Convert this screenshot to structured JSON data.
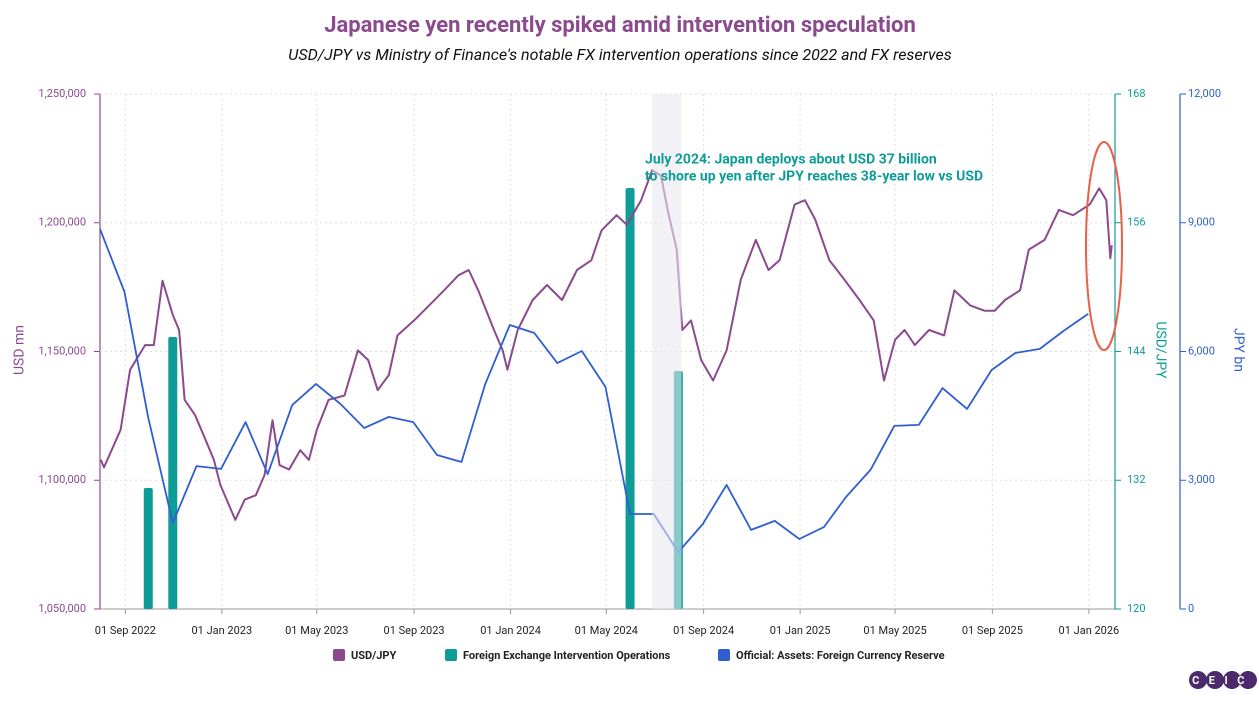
{
  "chart_data": {
    "type": "combo",
    "title": "Japanese yen recently spiked amid intervention speculation",
    "subtitle": "USD/JPY vs Ministry of Finance's notable FX intervention operations since 2022 and FX reserves",
    "y_label": "USD mn",
    "y2_label": "USD/JPY",
    "y3_label": "JPY bn",
    "xlim": [
      "2022-07-31",
      "2026-02-03"
    ],
    "xticks": [
      {
        "value": "2022-09-01",
        "label": "01 Sep 2022"
      },
      {
        "value": "2023-01-01",
        "label": "01 Jan 2023"
      },
      {
        "value": "2023-05-01",
        "label": "01 May 2023"
      },
      {
        "value": "2023-09-01",
        "label": "01 Sep 2023"
      },
      {
        "value": "2024-01-01",
        "label": "01 Jan 2024"
      },
      {
        "value": "2024-05-01",
        "label": "01 May 2024"
      },
      {
        "value": "2024-09-01",
        "label": "01 Sep 2024"
      },
      {
        "value": "2025-01-01",
        "label": "01 Jan 2025"
      },
      {
        "value": "2025-05-01",
        "label": "01 May 2025"
      },
      {
        "value": "2025-09-01",
        "label": "01 Sep 2025"
      },
      {
        "value": "2026-01-01",
        "label": "01 Jan 2026"
      }
    ],
    "ylim": [
      1050000,
      1250000
    ],
    "yticks": [
      {
        "value": 1050000,
        "label": "1,050,000"
      },
      {
        "value": 1100000,
        "label": "1,100,000"
      },
      {
        "value": 1150000,
        "label": "1,150,000"
      },
      {
        "value": 1200000,
        "label": "1,200,000"
      },
      {
        "value": 1250000,
        "label": "1,250,000"
      }
    ],
    "y2lim": [
      120,
      168
    ],
    "y2ticks": [
      120,
      132,
      144,
      156,
      168
    ],
    "y3lim": [
      0,
      12000
    ],
    "y3ticks": [
      0,
      {
        "value": 3000,
        "label": "3,000"
      },
      {
        "value": 6000,
        "label": "6,000"
      },
      {
        "value": 9000,
        "label": "9,000"
      },
      {
        "value": 12000,
        "label": "12,000"
      }
    ],
    "grid": true,
    "highlight": [
      "2024-06-28",
      "2024-08-04"
    ],
    "annotation": [
      "July 2024: Japan deploys about USD 37 billion",
      "to shore up yen after JPY reaches 38-year low vs USD"
    ],
    "logo": "CEIC",
    "series": [
      {
        "name": "USD/JPY",
        "type": "line",
        "axis": "y2",
        "color": "#8b4a8e",
        "x": [
          "2022-08-01",
          "2022-08-05",
          "2022-08-26",
          "2022-09-07",
          "2022-09-26",
          "2022-10-07",
          "2022-10-18",
          "2022-10-31",
          "2022-11-08",
          "2022-11-15",
          "2022-11-28",
          "2022-12-09",
          "2022-12-22",
          "2022-12-30",
          "2023-01-18",
          "2023-01-30",
          "2023-02-13",
          "2023-02-24",
          "2023-03-06",
          "2023-03-15",
          "2023-03-27",
          "2023-04-10",
          "2023-04-21",
          "2023-05-01",
          "2023-05-16",
          "2023-06-05",
          "2023-06-22",
          "2023-07-05",
          "2023-07-17",
          "2023-07-31",
          "2023-08-11",
          "2023-09-01",
          "2023-09-20",
          "2023-10-09",
          "2023-10-27",
          "2023-11-09",
          "2023-11-21",
          "2023-12-11",
          "2023-12-22",
          "2023-12-28",
          "2024-01-10",
          "2024-01-29",
          "2024-02-16",
          "2024-03-06",
          "2024-03-25",
          "2024-04-12",
          "2024-04-25",
          "2024-05-14",
          "2024-05-27",
          "2024-06-14",
          "2024-06-28",
          "2024-07-09",
          "2024-07-19",
          "2024-07-29",
          "2024-08-05",
          "2024-08-16",
          "2024-08-29",
          "2024-09-13",
          "2024-09-30",
          "2024-10-18",
          "2024-11-06",
          "2024-11-22",
          "2024-12-06",
          "2024-12-25",
          "2025-01-07",
          "2025-01-20",
          "2025-02-07",
          "2025-02-26",
          "2025-03-17",
          "2025-04-04",
          "2025-04-17",
          "2025-05-01",
          "2025-05-13",
          "2025-05-26",
          "2025-06-13",
          "2025-07-02",
          "2025-07-15",
          "2025-08-04",
          "2025-08-22",
          "2025-09-04",
          "2025-09-17",
          "2025-10-06",
          "2025-10-17",
          "2025-11-06",
          "2025-11-24",
          "2025-12-12",
          "2026-01-02",
          "2026-01-14",
          "2026-01-23",
          "2026-01-28",
          "2026-01-30"
        ],
        "values": [
          133.9,
          133.2,
          136.7,
          142.3,
          144.6,
          144.6,
          150.6,
          147.4,
          146,
          139.5,
          138.1,
          136.2,
          133.9,
          131.6,
          128.3,
          130.2,
          130.6,
          132.5,
          137.6,
          133.4,
          133,
          134.8,
          133.9,
          136.7,
          139.5,
          139.9,
          144.1,
          143.2,
          140.4,
          141.8,
          145.5,
          146.9,
          148.3,
          149.7,
          151.1,
          151.6,
          149.7,
          146,
          144.1,
          142.3,
          146,
          148.8,
          150.2,
          148.8,
          151.6,
          152.5,
          155.3,
          156.7,
          155.8,
          158.1,
          160.9,
          160.4,
          156.7,
          153.5,
          146,
          146.9,
          143.2,
          141.3,
          144.1,
          150.7,
          154.4,
          151.6,
          152.5,
          157.7,
          158.1,
          156.3,
          152.5,
          150.7,
          148.8,
          146.9,
          141.3,
          145.1,
          146,
          144.6,
          146,
          145.5,
          149.7,
          148.3,
          147.8,
          147.8,
          148.8,
          149.7,
          153.5,
          154.4,
          157.2,
          156.7,
          157.7,
          159.2,
          158.1,
          152.7,
          153.9
        ]
      },
      {
        "name": "Foreign Exchange Intervention Operations",
        "type": "bar",
        "axis": "y3",
        "color": "#0e9c96",
        "x": [
          "2022-09-30",
          "2022-10-31",
          "2024-05-31",
          "2024-07-31"
        ],
        "values": [
          2819,
          6338,
          9810,
          5546
        ]
      },
      {
        "name": "Official: Assets: Foreign Currency Reserve",
        "type": "line",
        "axis": "y",
        "color": "#2f5fcf",
        "x": [
          "2022-07-31",
          "2022-08-31",
          "2022-09-30",
          "2022-10-31",
          "2022-11-30",
          "2022-12-31",
          "2023-01-31",
          "2023-02-28",
          "2023-03-31",
          "2023-04-30",
          "2023-05-31",
          "2023-06-30",
          "2023-07-31",
          "2023-08-31",
          "2023-09-30",
          "2023-10-31",
          "2023-11-30",
          "2023-12-31",
          "2024-01-31",
          "2024-02-29",
          "2024-03-31",
          "2024-04-30",
          "2024-05-31",
          "2024-06-30",
          "2024-07-31",
          "2024-08-31",
          "2024-09-30",
          "2024-10-31",
          "2024-11-30",
          "2024-12-31",
          "2025-01-31",
          "2025-02-28",
          "2025-03-31",
          "2025-04-30",
          "2025-05-31",
          "2025-06-30",
          "2025-07-31",
          "2025-08-31",
          "2025-09-30",
          "2025-10-31",
          "2025-11-30",
          "2025-12-31"
        ],
        "values": [
          1197600,
          1173100,
          1124200,
          1083400,
          1105500,
          1104400,
          1122600,
          1102400,
          1129200,
          1137400,
          1129600,
          1120300,
          1124600,
          1122600,
          1109800,
          1107100,
          1137400,
          1160300,
          1157200,
          1145500,
          1150200,
          1136200,
          1086900,
          1086900,
          1072100,
          1083000,
          1098200,
          1080700,
          1084200,
          1077200,
          1081800,
          1093500,
          1104000,
          1121100,
          1121500,
          1135800,
          1127700,
          1142800,
          1149400,
          1151000,
          1158000,
          1164600
        ]
      }
    ]
  }
}
